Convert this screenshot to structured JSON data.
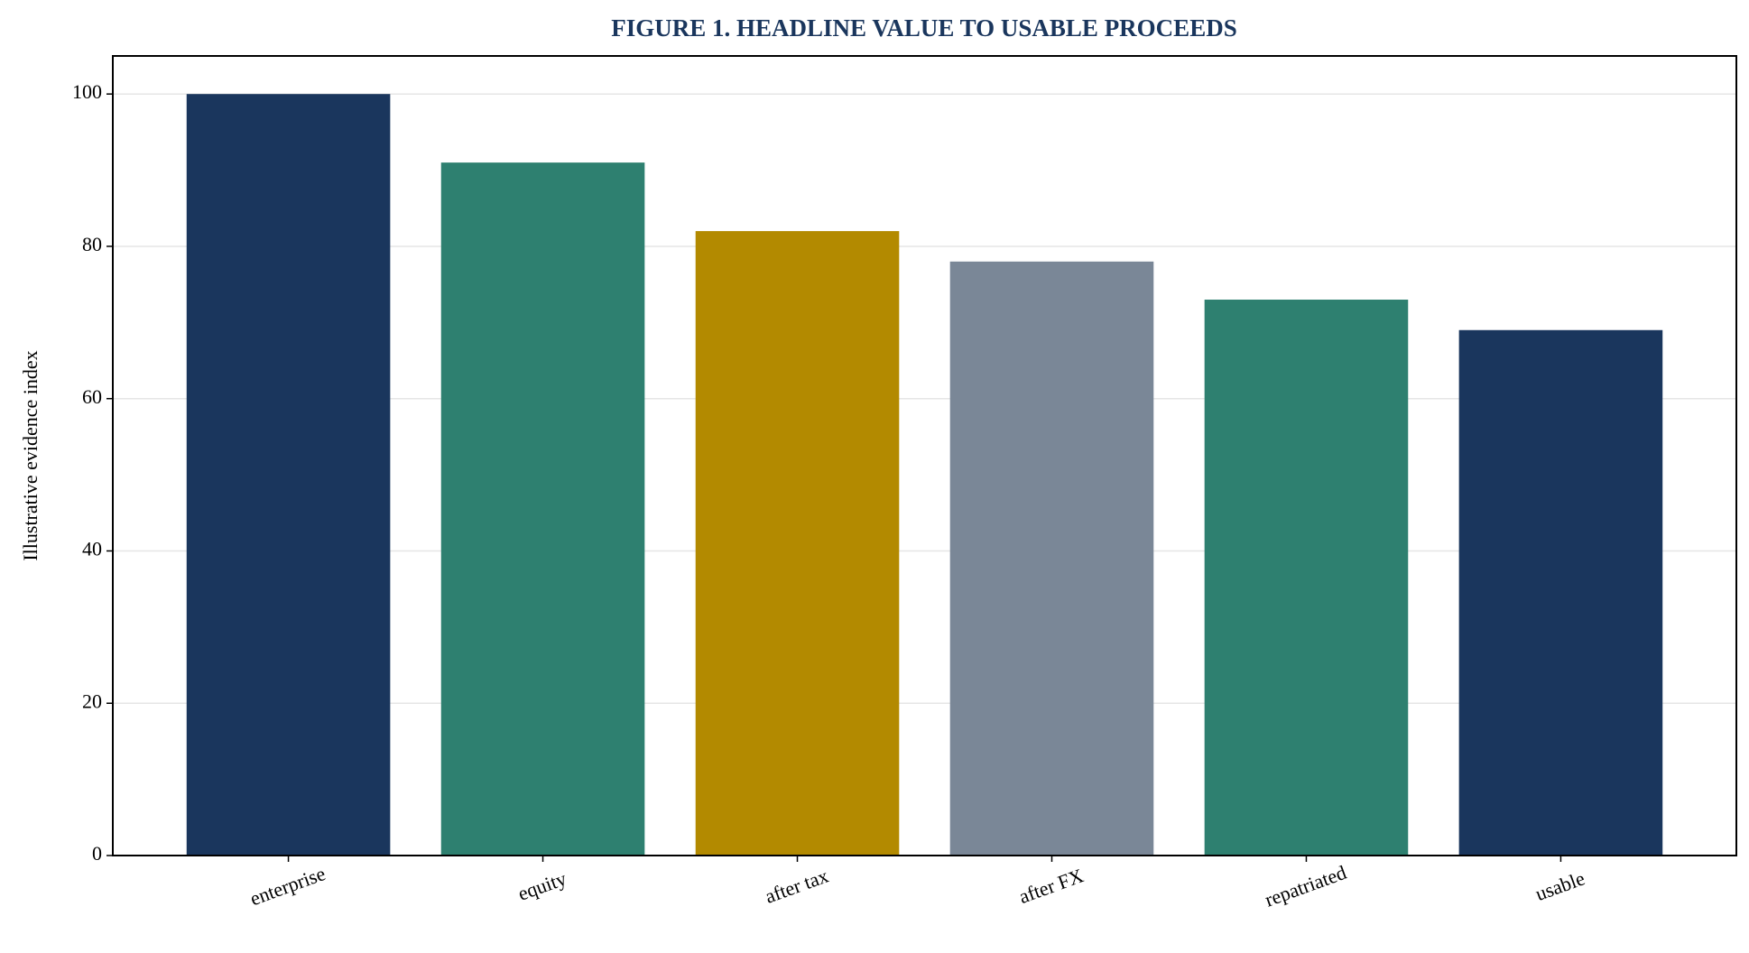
{
  "chart_data": {
    "type": "bar",
    "title": "FIGURE 1. HEADLINE VALUE TO USABLE PROCEEDS",
    "y_label": "Illustrative evidence index",
    "categories": [
      "enterprise",
      "equity",
      "after tax",
      "after FX",
      "repatriated",
      "usable"
    ],
    "values": [
      100,
      91,
      82,
      78,
      73,
      69
    ],
    "colors": [
      "#1a365d",
      "#2e8070",
      "#b38a00",
      "#7a8797",
      "#2e8070",
      "#1a365d"
    ],
    "ylim": [
      0,
      105
    ],
    "yticks": [
      0,
      20,
      40,
      60,
      80,
      100
    ],
    "grid": true
  }
}
